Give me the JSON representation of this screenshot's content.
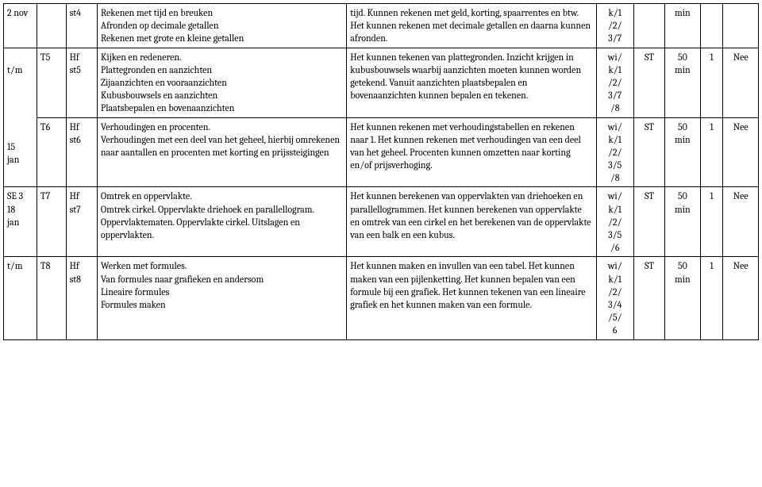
{
  "rows": [
    {
      "c1": "2 nov",
      "c2": "",
      "c3": "st4",
      "c4": "Rekenen met tijd en breuken\nAfronden op decimale getallen\nRekenen met grote en kleine getallen",
      "c5": "tijd. Kunnen rekenen met geld, korting, spaarrentes en btw. Het kunnen rekenen met decimale getallen en daarna kunnen afronden.",
      "c6": "k/1\n/2/\n3/7",
      "c7": "",
      "c8": "min",
      "c9": "",
      "c10": ""
    },
    {
      "c1": "\nt/m\n\n\n\n\n\n15\njan",
      "c2": "T5",
      "c3": "Hf\nst5",
      "c4": "Kijken en redeneren.\nPlattegronden en aanzichten\nZijaanzichten en vooraanzichten\nKubusbouwsels en aanzichten\nPlaatsbepalen en bovenaanzichten",
      "c5": "Het kunnen tekenen van plattegronden. Inzicht krijgen in kubusbouwsels waarbij aanzichten moeten kunnen worden getekend. Vanuit aanzichten plaatsbepalen en bovenaanzichten kunnen bepalen en tekenen.",
      "c6": "wi/\nk/1\n/2/\n3/7\n/8",
      "c7": "ST",
      "c8": "50\nmin",
      "c9": "1",
      "c10": "Nee"
    },
    {
      "c2": "T6",
      "c3": "Hf\nst6",
      "c4": "Verhoudingen en procenten.\nVerhoudingen met een deel van het geheel, hierbij omrekenen naar aantallen en procenten met korting en prijssteigingen",
      "c5": "Het kunnen rekenen met verhoudingstabellen en rekenen naar 1. Het kunnen rekenen met verhoudingen van een deel van het geheel. Procenten kunnen omzetten naar korting en/of prijsverhoging.",
      "c6": "wi/\nk/1\n/2/\n3/5\n/8",
      "c7": "ST",
      "c8": "50\nmin",
      "c9": "1",
      "c10": "Nee"
    },
    {
      "c1": "SE 3\n18\njan",
      "c2": "T7",
      "c3": "Hf\nst7",
      "c4": "Omtrek en oppervlakte.\nOmtrek cirkel. Oppervlakte driehoek en parallellogram. Oppervlaktematen. Oppervlakte cirkel. Uitslagen en oppervlakten.",
      "c5": "Het kunnen berekenen van oppervlakten van driehoeken en parallellogrammen. Het kunnen berekenen van oppervlakte en omtrek van een cirkel en het berekenen van de oppervlakte van een balk en een kubus.",
      "c6": "wi/\nk/1\n/2/\n3/5\n/6",
      "c7": "ST",
      "c8": "50\nmin",
      "c9": "1",
      "c10": "Nee"
    },
    {
      "c1": "t/m",
      "c2": "T8",
      "c3": "Hf\nst8",
      "c4": "Werken met formules.\nVan formules naar grafieken en andersom\nLineaire formules\nFormules maken",
      "c5": "Het kunnen maken en invullen van een tabel. Het kunnen maken van een pijlenketting. Het kunnen bepalen van een formule bij een grafiek. Het kunnen tekenen van een lineaire grafiek en het kunnen maken van een formule.",
      "c6": "wi/\nk/1\n/2/\n3/4\n/5/\n6",
      "c7": "ST",
      "c8": "50\nmin",
      "c9": "1",
      "c10": "Nee"
    }
  ]
}
